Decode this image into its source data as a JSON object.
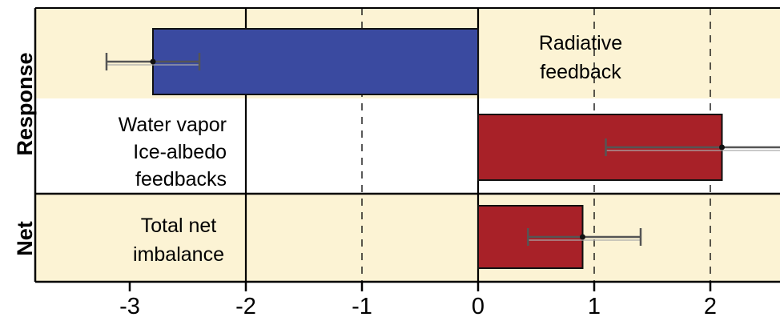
{
  "chart_data": {
    "type": "bar",
    "orientation": "horizontal",
    "xlim": [
      -3.8,
      2.6
    ],
    "xticks": [
      -3,
      -2,
      -1,
      0,
      1,
      2
    ],
    "xtick_labels": [
      "-3",
      "-2",
      "-1",
      "0",
      "1",
      "2"
    ],
    "vertical_lines": [
      {
        "x": -2,
        "style": "solid"
      },
      {
        "x": -1,
        "style": "dashed"
      },
      {
        "x": 0,
        "style": "solid"
      },
      {
        "x": 1,
        "style": "dashed"
      },
      {
        "x": 2,
        "style": "dashed"
      }
    ],
    "group_labels": {
      "response": "Response",
      "net": "Net"
    },
    "bars": [
      {
        "key": "radiative",
        "group": "response",
        "label_lines": [
          "Radiative",
          "feedback"
        ],
        "value": -2.8,
        "error_low": -3.2,
        "error_high": -2.4,
        "color": "#3a4aa0",
        "background": "#fcf3d4"
      },
      {
        "key": "water",
        "group": "response",
        "label_lines": [
          "Water vapor",
          "Ice-albedo",
          "feedbacks"
        ],
        "value": 2.1,
        "error_low": 1.1,
        "error_high": 2.6,
        "color": "#a82128",
        "background": "#ffffff"
      },
      {
        "key": "net",
        "group": "net",
        "label_lines": [
          "Total net",
          "imbalance"
        ],
        "value": 0.9,
        "error_low": 0.43,
        "error_high": 1.4,
        "color": "#a82128",
        "background": "#fcf3d4"
      }
    ],
    "colors": {
      "negative_bar": "#3a4aa0",
      "positive_bar": "#a82128",
      "band": "#fcf3d4",
      "errorbar": "#555555"
    }
  }
}
